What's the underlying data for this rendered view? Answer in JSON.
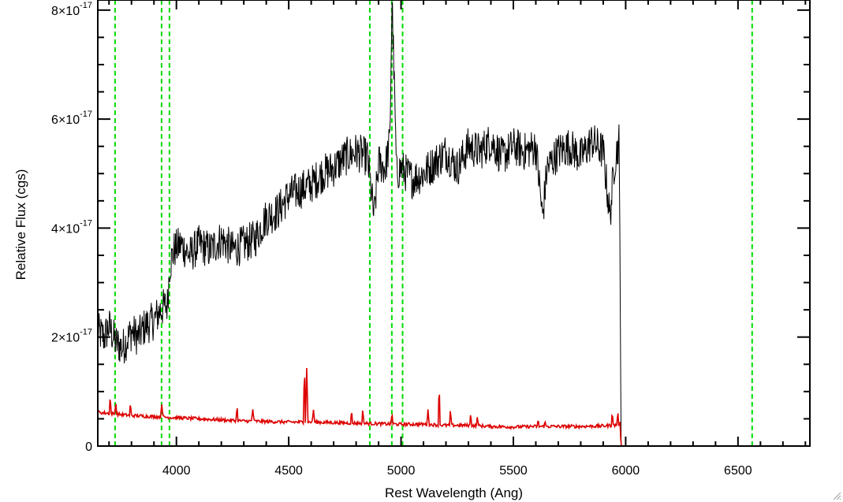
{
  "chart_data": {
    "type": "line",
    "title": "",
    "xlabel": "Rest Wavelength (Ang)",
    "ylabel": "Relative Flux (cgs)",
    "xlim": [
      3650,
      6820
    ],
    "ylim": [
      0,
      8.2e-17
    ],
    "x_ticks": [
      {
        "value": 4000,
        "label": "4000"
      },
      {
        "value": 4500,
        "label": "4500"
      },
      {
        "value": 5000,
        "label": "5000"
      },
      {
        "value": 5500,
        "label": "5500"
      },
      {
        "value": 6000,
        "label": "6000"
      },
      {
        "value": 6500,
        "label": "6500"
      }
    ],
    "y_ticks": [
      {
        "value": 0,
        "mantissa": "0",
        "times": "",
        "base": "",
        "exponent": ""
      },
      {
        "value": 2e-17,
        "mantissa": "2",
        "times": "×",
        "base": "10",
        "exponent": "-17"
      },
      {
        "value": 4e-17,
        "mantissa": "4",
        "times": "×",
        "base": "10",
        "exponent": "-17"
      },
      {
        "value": 6e-17,
        "mantissa": "6",
        "times": "×",
        "base": "10",
        "exponent": "-17"
      },
      {
        "value": 8e-17,
        "mantissa": "8",
        "times": "×",
        "base": "10",
        "exponent": "-17"
      }
    ],
    "vlines": [
      {
        "x": 3727,
        "color": "#00dd00",
        "style": "dashed"
      },
      {
        "x": 3934,
        "color": "#00dd00",
        "style": "dashed"
      },
      {
        "x": 3969,
        "color": "#00dd00",
        "style": "dashed"
      },
      {
        "x": 4861,
        "color": "#00dd00",
        "style": "dashed"
      },
      {
        "x": 4959,
        "color": "#00dd00",
        "style": "dashed"
      },
      {
        "x": 5007,
        "color": "#00dd00",
        "style": "dashed"
      },
      {
        "x": 6563,
        "color": "#00dd00",
        "style": "dashed"
      }
    ],
    "series": [
      {
        "color": "#000000",
        "x": [
          3650,
          3680,
          3700,
          3730,
          3760,
          3800,
          3830,
          3860,
          3900,
          3930,
          3960,
          3970,
          3990,
          4020,
          4060,
          4100,
          4150,
          4200,
          4250,
          4300,
          4350,
          4400,
          4450,
          4500,
          4550,
          4600,
          4650,
          4700,
          4750,
          4800,
          4850,
          4880,
          4900,
          4930,
          4950,
          4960,
          4980,
          5000,
          5050,
          5100,
          5150,
          5200,
          5250,
          5300,
          5350,
          5400,
          5450,
          5500,
          5550,
          5600,
          5630,
          5650,
          5700,
          5750,
          5800,
          5850,
          5900,
          5930,
          5950,
          5970,
          5975,
          5980,
          6000,
          6200,
          6400,
          6600,
          6820
        ],
        "y": [
          2.1e-17,
          2e-17,
          2.2e-17,
          1.9e-17,
          1.8e-17,
          2.1e-17,
          2e-17,
          2.2e-17,
          2.3e-17,
          2.5e-17,
          2.6e-17,
          3.3e-17,
          3.6e-17,
          3.7e-17,
          3.5e-17,
          3.7e-17,
          3.6e-17,
          3.8e-17,
          3.6e-17,
          3.7e-17,
          3.8e-17,
          4.2e-17,
          4.3e-17,
          4.6e-17,
          4.7e-17,
          4.8e-17,
          5e-17,
          5.1e-17,
          5.3e-17,
          5.4e-17,
          5.3e-17,
          4.2e-17,
          5.2e-17,
          5.1e-17,
          5.6e-17,
          8.2e-17,
          5e-17,
          5.1e-17,
          4.9e-17,
          5e-17,
          5.2e-17,
          5.4e-17,
          5.1e-17,
          5.5e-17,
          5.4e-17,
          5.6e-17,
          5.3e-17,
          5.5e-17,
          5.4e-17,
          5.5e-17,
          4.2e-17,
          5.1e-17,
          5.4e-17,
          5.5e-17,
          5.3e-17,
          5.6e-17,
          5.4e-17,
          4.2e-17,
          5.2e-17,
          5.6e-17,
          3.5e-17,
          0,
          0,
          0,
          0,
          0,
          0
        ],
        "noise": 3.6e-18
      },
      {
        "color": "#dd0000",
        "x": [
          3650,
          3700,
          3750,
          3800,
          3850,
          3900,
          3950,
          4000,
          4100,
          4200,
          4300,
          4400,
          4500,
          4600,
          4700,
          4800,
          4900,
          5000,
          5100,
          5200,
          5300,
          5400,
          5500,
          5600,
          5700,
          5800,
          5900,
          5950,
          5975,
          5980,
          6000,
          6200,
          6400,
          6600,
          6820
        ],
        "y": [
          6.2e-18,
          6e-18,
          5.8e-18,
          5.6e-18,
          5.5e-18,
          5.4e-18,
          5.3e-18,
          5.2e-18,
          5e-18,
          4.8e-18,
          4.6e-18,
          4.5e-18,
          4.4e-18,
          4.4e-18,
          4.3e-18,
          4.2e-18,
          4.1e-18,
          4e-18,
          4e-18,
          3.8e-18,
          3.8e-18,
          3.6e-18,
          3.5e-18,
          3.6e-18,
          3.6e-18,
          3.6e-18,
          3.7e-18,
          3.8e-18,
          4e-18,
          0,
          0,
          0,
          0,
          0,
          0
        ],
        "noise": 3e-19,
        "lines": [
          {
            "x": 3705,
            "height": 3e-18
          },
          {
            "x": 3730,
            "height": 2.2e-18
          },
          {
            "x": 3795,
            "height": 2e-18
          },
          {
            "x": 3935,
            "height": 2.5e-18
          },
          {
            "x": 4270,
            "height": 2.5e-18
          },
          {
            "x": 4340,
            "height": 2.2e-18
          },
          {
            "x": 4570,
            "height": 1e-17
          },
          {
            "x": 4580,
            "height": 9.8e-18
          },
          {
            "x": 4610,
            "height": 2.2e-18
          },
          {
            "x": 4780,
            "height": 2e-18
          },
          {
            "x": 4830,
            "height": 2.5e-18
          },
          {
            "x": 4960,
            "height": 2e-18
          },
          {
            "x": 5120,
            "height": 2.5e-18
          },
          {
            "x": 5170,
            "height": 7e-18
          },
          {
            "x": 5220,
            "height": 2.8e-18
          },
          {
            "x": 5310,
            "height": 2.2e-18
          },
          {
            "x": 5340,
            "height": 1.8e-18
          },
          {
            "x": 5610,
            "height": 1e-18
          },
          {
            "x": 5640,
            "height": 1e-18
          },
          {
            "x": 5940,
            "height": 2.5e-18
          },
          {
            "x": 5965,
            "height": 2.2e-18
          }
        ]
      }
    ]
  }
}
